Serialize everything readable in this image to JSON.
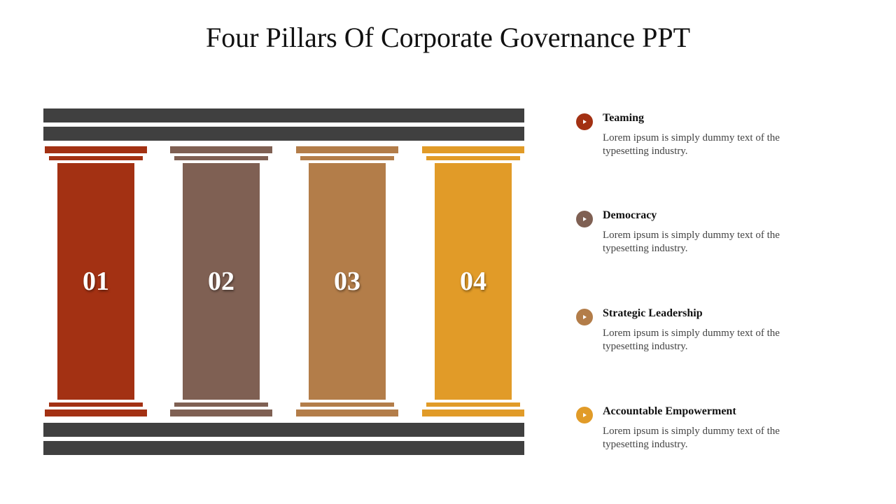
{
  "title": "Four Pillars Of Corporate Governance PPT",
  "colors": {
    "bar": "#404040",
    "pillar_1": "#A33113",
    "pillar_2": "#7F6053",
    "pillar_3": "#B37D49",
    "pillar_4": "#E19B28"
  },
  "pillars": [
    {
      "number": "01",
      "color": "#A33113"
    },
    {
      "number": "02",
      "color": "#7F6053"
    },
    {
      "number": "03",
      "color": "#B37D49"
    },
    {
      "number": "04",
      "color": "#E19B28"
    }
  ],
  "items": [
    {
      "title": "Teaming",
      "desc": "Lorem ipsum is simply dummy text of the typesetting industry.",
      "icon": "play-circle-icon",
      "color": "#A33113"
    },
    {
      "title": "Democracy",
      "desc": "Lorem ipsum is simply dummy text of the typesetting industry.",
      "icon": "play-circle-icon",
      "color": "#7F6053"
    },
    {
      "title": "Strategic Leadership",
      "desc": "Lorem ipsum is simply dummy text of the typesetting industry.",
      "icon": "play-circle-icon",
      "color": "#B37D49"
    },
    {
      "title": "Accountable Empowerment",
      "desc": "Lorem ipsum is simply dummy text of the typesetting industry.",
      "icon": "play-circle-icon",
      "color": "#E19B28"
    }
  ]
}
